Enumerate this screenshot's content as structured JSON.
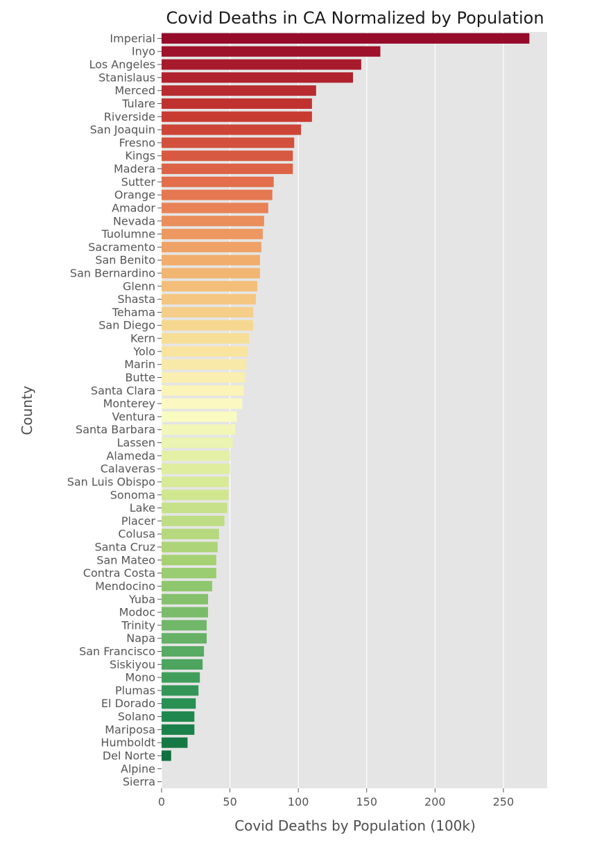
{
  "chart_data": {
    "type": "bar",
    "orientation": "horizontal",
    "title": "Covid Deaths in CA Normalized by Population",
    "xlabel": "Covid Deaths by Population (100k)",
    "ylabel": "County",
    "xlim": [
      0,
      282
    ],
    "xticks": [
      0,
      50,
      100,
      150,
      200,
      250
    ],
    "grid": true,
    "legend": "none",
    "palette": "RdYlGn",
    "background_color": "#e5e5e5",
    "grid_color": "#ffffff",
    "categories": [
      "Imperial",
      "Inyo",
      "Los Angeles",
      "Stanislaus",
      "Merced",
      "Tulare",
      "Riverside",
      "San Joaquin",
      "Fresno",
      "Kings",
      "Madera",
      "Sutter",
      "Orange",
      "Amador",
      "Nevada",
      "Tuolumne",
      "Sacramento",
      "San Benito",
      "San Bernardino",
      "Glenn",
      "Shasta",
      "Tehama",
      "San Diego",
      "Kern",
      "Yolo",
      "Marin",
      "Butte",
      "Santa Clara",
      "Monterey",
      "Ventura",
      "Santa Barbara",
      "Lassen",
      "Alameda",
      "Calaveras",
      "San Luis Obispo",
      "Sonoma",
      "Lake",
      "Placer",
      "Colusa",
      "Santa Cruz",
      "San Mateo",
      "Contra Costa",
      "Mendocino",
      "Yuba",
      "Modoc",
      "Trinity",
      "Napa",
      "San Francisco",
      "Siskiyou",
      "Mono",
      "Plumas",
      "El Dorado",
      "Solano",
      "Mariposa",
      "Humboldt",
      "Del Norte",
      "Alpine",
      "Sierra"
    ],
    "values": [
      269,
      160,
      146,
      140,
      113,
      110,
      110,
      102,
      97,
      96,
      96,
      82,
      81,
      78,
      75,
      74,
      73,
      72,
      72,
      70,
      69,
      67,
      67,
      64,
      63,
      62,
      61,
      60,
      59,
      55,
      54,
      52,
      50,
      50,
      49,
      49,
      48,
      46,
      42,
      41,
      40,
      40,
      37,
      34,
      34,
      33,
      33,
      31,
      30,
      28,
      27,
      25,
      24,
      24,
      19,
      7,
      0,
      0
    ]
  }
}
